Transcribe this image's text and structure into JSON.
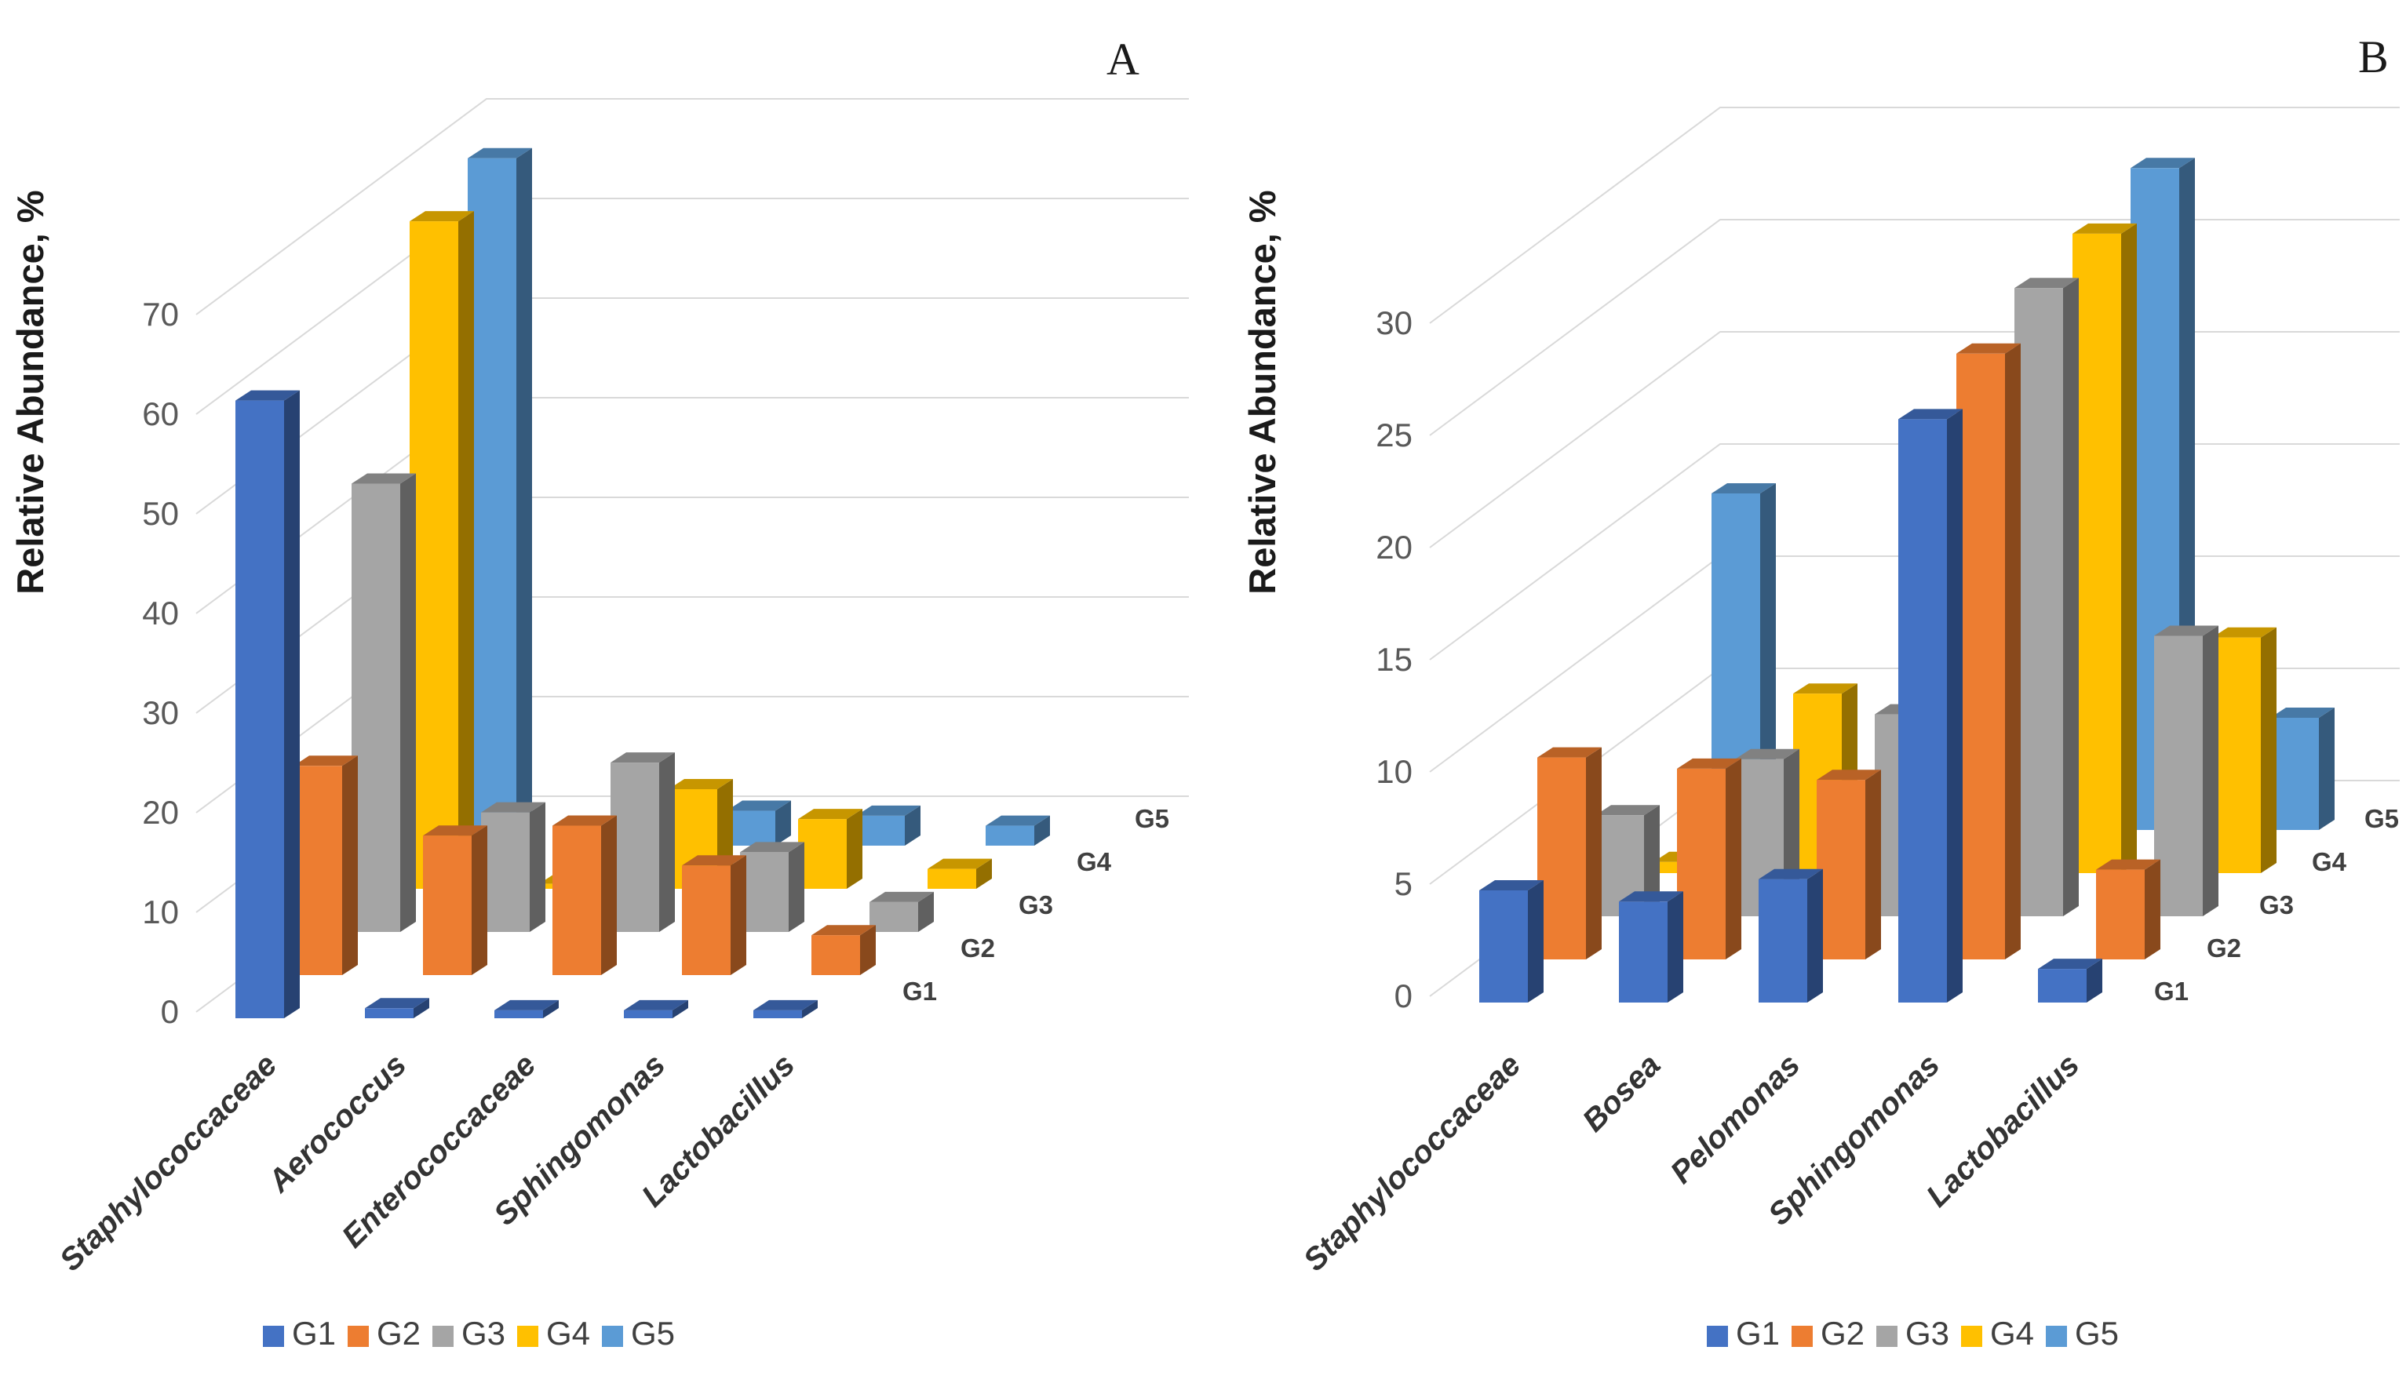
{
  "figure": {
    "y_axis_title": "Relative Abundance, %",
    "panel_letters": [
      "A",
      "B"
    ],
    "legend_labels": [
      "G1",
      "G2",
      "G3",
      "G4",
      "G5"
    ],
    "series_colors": {
      "G1": "#4472C4",
      "G2": "#ED7D31",
      "G3": "#A5A5A5",
      "G4": "#FFC000",
      "G5": "#5B9BD5"
    },
    "text_colors": {
      "ticks": "#595959",
      "labels": "#333333",
      "depth_labels": "#404040",
      "legend": "#404040",
      "panel_letter": "#1a1a1a",
      "gridline": "#D9D9D9"
    }
  },
  "chart_data": [
    {
      "type": "bar",
      "variant": "3d-column",
      "panel": "A",
      "title": "",
      "xlabel": "",
      "ylabel": "Relative Abundance, %",
      "ylim": [
        0,
        70
      ],
      "ytick_step": 10,
      "grid": true,
      "legend_position": "bottom",
      "categories": [
        "Staphylococcaceae",
        "Aerococcus",
        "Enterococcaceae",
        "Sphingomonas",
        "Lactobacillus"
      ],
      "depth_axis_labels": [
        "G1",
        "G2",
        "G3",
        "G4",
        "G5"
      ],
      "series": [
        {
          "name": "G1",
          "color": "#4472C4",
          "values": [
            62,
            1,
            0.8,
            0.8,
            0.8
          ]
        },
        {
          "name": "G2",
          "color": "#ED7D31",
          "values": [
            21,
            14,
            15,
            11,
            4
          ]
        },
        {
          "name": "G3",
          "color": "#A5A5A5",
          "values": [
            45,
            12,
            17,
            8,
            3
          ]
        },
        {
          "name": "G4",
          "color": "#FFC000",
          "values": [
            67,
            0.5,
            10,
            7,
            2
          ]
        },
        {
          "name": "G5",
          "color": "#5B9BD5",
          "values": [
            69,
            0.5,
            3.5,
            3,
            2
          ]
        }
      ]
    },
    {
      "type": "bar",
      "variant": "3d-column",
      "panel": "B",
      "title": "",
      "xlabel": "",
      "ylabel": "Relative Abundance, %",
      "ylim": [
        0,
        30
      ],
      "ytick_step": 5,
      "grid": true,
      "legend_position": "bottom",
      "categories": [
        "Staphylococcaceae",
        "Bosea",
        "Pelomonas",
        "Sphingomonas",
        "Lactobacillus"
      ],
      "depth_axis_labels": [
        "G1",
        "G2",
        "G3",
        "G4",
        "G5"
      ],
      "series": [
        {
          "name": "G1",
          "color": "#4472C4",
          "values": [
            5,
            4.5,
            5.5,
            26,
            1.5
          ]
        },
        {
          "name": "G2",
          "color": "#ED7D31",
          "values": [
            9,
            8.5,
            8,
            27,
            4
          ]
        },
        {
          "name": "G3",
          "color": "#A5A5A5",
          "values": [
            4.5,
            7,
            9,
            28,
            12.5
          ]
        },
        {
          "name": "G4",
          "color": "#FFC000",
          "values": [
            0.5,
            8,
            12,
            28.5,
            10.5
          ]
        },
        {
          "name": "G5",
          "color": "#5B9BD5",
          "values": [
            15,
            1,
            14,
            29.5,
            5
          ]
        }
      ]
    }
  ]
}
